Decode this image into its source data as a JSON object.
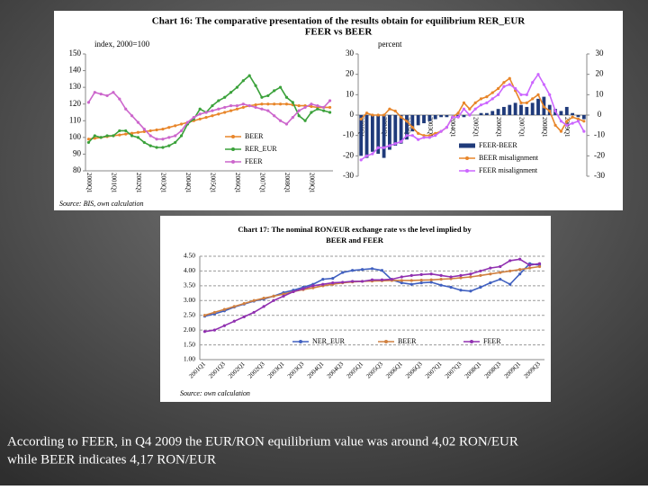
{
  "chart_data": [
    {
      "type": "line",
      "title": [
        "Chart 16: The comparative presentation of the results obtain for equilibrium RER_EUR",
        "FEER vs BEER"
      ],
      "y_label": "index, 2000=100",
      "source": "Source: BIS, own calculation",
      "categories": [
        "2000Q1",
        null,
        null,
        null,
        "2001Q1",
        null,
        null,
        null,
        "2002Q1",
        null,
        null,
        null,
        "2003Q1",
        null,
        null,
        null,
        "2004Q1",
        null,
        null,
        null,
        "2005Q1",
        null,
        null,
        null,
        "2006Q1",
        null,
        null,
        null,
        "2007Q1",
        null,
        null,
        null,
        "2008Q1",
        null,
        null,
        null,
        "2009Q1",
        null,
        null,
        null
      ],
      "ylim": [
        80,
        150
      ],
      "yticks": [
        80,
        90,
        100,
        110,
        120,
        130,
        140,
        150
      ],
      "grid": false,
      "series": [
        {
          "name": "BEER",
          "color": "#e8862a",
          "values": [
            99,
            99.5,
            100,
            100.5,
            101,
            101.5,
            102,
            102.5,
            103,
            103.5,
            104,
            104.5,
            105,
            106,
            107,
            108,
            109,
            110,
            111,
            112,
            113,
            114,
            115,
            116,
            117,
            118,
            119,
            119.5,
            120,
            120,
            120,
            120,
            120,
            119.5,
            119,
            119,
            118.5,
            118,
            118,
            118
          ]
        },
        {
          "name": "RER_EUR",
          "color": "#3aa13a",
          "values": [
            97,
            101,
            100,
            101,
            101,
            104,
            104,
            101,
            100,
            97,
            95,
            94,
            94,
            95,
            97,
            101,
            108,
            111,
            117,
            115,
            119,
            122,
            124,
            127,
            130,
            134,
            137,
            131,
            124,
            125,
            128,
            130,
            124,
            121,
            113,
            110,
            115,
            117,
            116,
            115
          ]
        },
        {
          "name": "FEER",
          "color": "#cc66cc",
          "values": [
            121,
            127,
            126,
            125,
            127,
            123,
            117,
            113,
            109,
            105,
            101,
            99,
            99,
            100,
            101,
            104,
            109,
            112,
            114,
            115,
            116,
            117,
            118,
            119,
            119,
            120,
            119,
            118,
            117,
            116,
            113,
            110,
            108,
            112,
            116,
            118,
            120,
            119,
            118,
            122
          ]
        }
      ]
    },
    {
      "type": "bar",
      "y_label": "percent",
      "categories": [
        "2000Q1",
        null,
        null,
        null,
        "2001Q1",
        null,
        null,
        null,
        "2002Q1",
        null,
        null,
        null,
        "2003Q1",
        null,
        null,
        null,
        "2004Q1",
        null,
        null,
        null,
        "2005Q1",
        null,
        null,
        null,
        "2006Q1",
        null,
        null,
        null,
        "2007Q1",
        null,
        null,
        null,
        "2008Q1",
        null,
        null,
        null,
        "2009Q1",
        null,
        null,
        null
      ],
      "ylim": [
        -30,
        30
      ],
      "yticks": [
        -30,
        -20,
        -10,
        0,
        10,
        20,
        30
      ],
      "y2lim": [
        -30,
        30
      ],
      "y2ticks": [
        -30,
        -20,
        -10,
        0,
        10,
        20,
        30
      ],
      "series": [
        {
          "name": "FEER-BEER",
          "color": "#1f3a7a",
          "type": "bar",
          "values": [
            -20,
            -21,
            -18,
            -19,
            -21,
            -17,
            -15,
            -14,
            -12,
            -8,
            -5,
            -4,
            -3,
            -2,
            -1,
            -1,
            0,
            -1,
            -1,
            0,
            0,
            1,
            1,
            2,
            3,
            4,
            5,
            6,
            5,
            4,
            6,
            8,
            9,
            5,
            3,
            2,
            4,
            1,
            -1,
            -2
          ]
        },
        {
          "name": "BEER misalignment",
          "color": "#e8862a",
          "type": "line",
          "values": [
            -2,
            1,
            0,
            0,
            0,
            3,
            2,
            -1,
            -3,
            -6,
            -9,
            -10,
            -10,
            -9,
            -8,
            -6,
            -1,
            1,
            6,
            3,
            6,
            8,
            9,
            11,
            13,
            16,
            18,
            12,
            6,
            6,
            8,
            10,
            4,
            2,
            -5,
            -8,
            -3,
            -1,
            -2,
            -3
          ]
        },
        {
          "name": "FEER misalignment",
          "color": "#cc66ff",
          "type": "line",
          "axis": "y2",
          "values": [
            -22,
            -20,
            -19,
            -16,
            -16,
            -15,
            -14,
            -13,
            -10,
            -10,
            -12,
            -11,
            -11,
            -10,
            -8,
            -6,
            -1,
            -1,
            3,
            0,
            3,
            5,
            6,
            8,
            10,
            14,
            15,
            13,
            10,
            10,
            16,
            20,
            15,
            10,
            2,
            -3,
            -5,
            -4,
            -3,
            -8
          ]
        }
      ]
    },
    {
      "type": "line",
      "title": [
        "Chart 17: The nominal RON/EUR exchange rate vs the level implied by",
        "BEER and FEER"
      ],
      "source": "Source: own calculation",
      "categories": [
        "2001Q1",
        null,
        "2001Q3",
        null,
        "2002Q1",
        null,
        "2002Q3",
        null,
        "2003Q1",
        null,
        "2003Q3",
        null,
        "2004Q1",
        null,
        "2004Q3",
        null,
        "2005Q1",
        null,
        "2005Q3",
        null,
        "2006Q1",
        null,
        "2006Q3",
        null,
        "2007Q1",
        null,
        "2007Q3",
        null,
        "2008Q1",
        null,
        "2008Q3",
        null,
        "2009Q1",
        null,
        "2009Q3"
      ],
      "ylim": [
        1,
        4.5
      ],
      "yticks": [
        {
          "value": 1,
          "label": "1.00"
        },
        {
          "value": 1.5,
          "label": "1.50"
        },
        {
          "value": 2,
          "label": "2.00"
        },
        {
          "value": 2.5,
          "label": "2.50"
        },
        {
          "value": 3,
          "label": "3.00"
        },
        {
          "value": 3.5,
          "label": "3.50"
        },
        {
          "value": 4,
          "label": "4.00"
        },
        {
          "value": 4.5,
          "label": "4.50"
        }
      ],
      "grid": true,
      "series": [
        {
          "name": "NER_EUR",
          "color": "#4060c0",
          "values": [
            2.47,
            2.55,
            2.65,
            2.78,
            2.88,
            2.98,
            3.05,
            3.15,
            3.27,
            3.35,
            3.45,
            3.55,
            3.72,
            3.75,
            3.95,
            4.02,
            4.05,
            4.08,
            4.02,
            3.7,
            3.6,
            3.55,
            3.6,
            3.62,
            3.52,
            3.45,
            3.35,
            3.32,
            3.45,
            3.6,
            3.72,
            3.55,
            3.9,
            4.25,
            4.2
          ]
        },
        {
          "name": "BEER",
          "color": "#d08040",
          "values": [
            2.5,
            2.6,
            2.7,
            2.8,
            2.9,
            3,
            3.08,
            3.15,
            3.22,
            3.3,
            3.37,
            3.43,
            3.5,
            3.55,
            3.6,
            3.63,
            3.65,
            3.66,
            3.67,
            3.68,
            3.68,
            3.68,
            3.69,
            3.7,
            3.72,
            3.74,
            3.77,
            3.8,
            3.85,
            3.9,
            3.95,
            4,
            4.05,
            4.1,
            4.15
          ]
        },
        {
          "name": "FEER",
          "color": "#9030b0",
          "values": [
            1.95,
            2,
            2.15,
            2.3,
            2.45,
            2.6,
            2.8,
            3,
            3.15,
            3.3,
            3.4,
            3.5,
            3.55,
            3.6,
            3.62,
            3.65,
            3.65,
            3.7,
            3.7,
            3.72,
            3.8,
            3.85,
            3.88,
            3.9,
            3.85,
            3.8,
            3.85,
            3.9,
            4,
            4.1,
            4.15,
            4.35,
            4.4,
            4.2,
            4.25
          ]
        }
      ]
    }
  ],
  "caption": [
    "According to FEER, in Q4 2009 the EUR/RON equilibrium value was around 4,02 RON/EUR",
    "while BEER indicates 4,17 RON/EUR"
  ]
}
